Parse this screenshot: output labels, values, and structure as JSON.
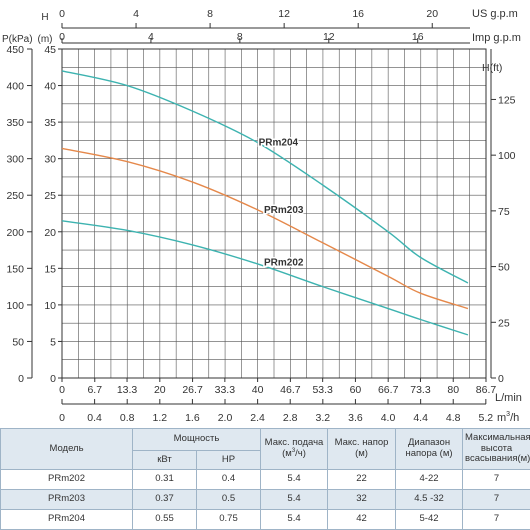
{
  "chart_data": {
    "type": "line",
    "title": "",
    "x_axes": {
      "us_gpm": {
        "label": "US g.p.m",
        "ticks": [
          "0",
          "4",
          "8",
          "12",
          "16",
          "20"
        ],
        "values": [
          0,
          4,
          8,
          12,
          16,
          20
        ]
      },
      "imp_gpm": {
        "label": "Imp g.p.m",
        "ticks": [
          "0",
          "4",
          "8",
          "12",
          "16"
        ],
        "values": [
          0,
          4,
          8,
          12,
          16
        ]
      },
      "l_min": {
        "label": "L/min",
        "ticks": [
          "0",
          "6.7",
          "13.3",
          "20",
          "26.7",
          "33.3",
          "40",
          "46.7",
          "53.3",
          "60",
          "66.7",
          "73.3",
          "80",
          "86.7"
        ],
        "values": [
          0,
          6.7,
          13.3,
          20,
          26.7,
          33.3,
          40,
          46.7,
          53.3,
          60,
          66.7,
          73.3,
          80,
          86.7
        ]
      },
      "m3h": {
        "label": "m",
        "unit_super": "3",
        "unit_tail": "/h",
        "ticks": [
          "0",
          "0.4",
          "0.8",
          "1.2",
          "1.6",
          "2.0",
          "2.4",
          "2.8",
          "3.2",
          "3.6",
          "4.0",
          "4.4",
          "4.8",
          "5.2"
        ],
        "values": [
          0,
          0.4,
          0.8,
          1.2,
          1.6,
          2.0,
          2.4,
          2.8,
          3.2,
          3.6,
          4.0,
          4.4,
          4.8,
          5.2
        ]
      }
    },
    "y_axes": {
      "pressure": {
        "label": "P(kPa)",
        "ticks": [
          "0",
          "50",
          "100",
          "150",
          "200",
          "250",
          "300",
          "350",
          "400",
          "450"
        ]
      },
      "head_m": {
        "label_top": "H",
        "label": "(m)",
        "ticks": [
          "0",
          "5",
          "10",
          "15",
          "20",
          "25",
          "30",
          "35",
          "40",
          "45"
        ],
        "ylim": [
          0,
          45
        ]
      },
      "head_ft": {
        "label": "H(ft)",
        "ticks": [
          "0",
          "25",
          "50",
          "75",
          "100",
          "125"
        ],
        "values": [
          0,
          25,
          50,
          75,
          100,
          125
        ]
      }
    },
    "xlim": [
      0,
      86.7
    ],
    "grid": true,
    "series": [
      {
        "name": "PRm204",
        "color": "#3db3b0",
        "label_x": 40.2,
        "label_y": 31.8,
        "points": [
          [
            0,
            42
          ],
          [
            13.3,
            40
          ],
          [
            26.7,
            36.5
          ],
          [
            40,
            32.2
          ],
          [
            53.3,
            26.4
          ],
          [
            66.7,
            20
          ],
          [
            73.3,
            16.5
          ],
          [
            83,
            13
          ]
        ]
      },
      {
        "name": "PRm203",
        "color": "#e5884a",
        "label_x": 41.3,
        "label_y": 22.6,
        "points": [
          [
            0,
            31.4
          ],
          [
            13.3,
            29.6
          ],
          [
            26.7,
            26.8
          ],
          [
            40,
            23
          ],
          [
            53.3,
            18.5
          ],
          [
            66.7,
            13.9
          ],
          [
            73.3,
            11.6
          ],
          [
            83,
            9.5
          ]
        ]
      },
      {
        "name": "PRm202",
        "color": "#3db3b0",
        "label_x": 41.3,
        "label_y": 15.4,
        "points": [
          [
            0,
            21.5
          ],
          [
            13.3,
            20.2
          ],
          [
            26.7,
            18.2
          ],
          [
            40,
            15.6
          ],
          [
            53.3,
            12.5
          ],
          [
            66.7,
            9.5
          ],
          [
            73.3,
            8
          ],
          [
            83,
            5.9
          ]
        ]
      }
    ]
  },
  "table": {
    "headers": {
      "model": "Модель",
      "power": "Мощность",
      "kw": "кВт",
      "hp": "HP",
      "flow_pre": "Макс. подача (м",
      "flow_sup": "3",
      "flow_post": "/ч)",
      "head": "Макс. напор (м)",
      "range": "Диапазон напора (м)",
      "suction": "Максимальная высота всасывания(м)"
    },
    "rows": [
      {
        "model": "PRm202",
        "kw": "0.31",
        "hp": "0.4",
        "flow": "5.4",
        "head": "22",
        "range": "4-22",
        "suction": "7"
      },
      {
        "model": "PRm203",
        "kw": "0.37",
        "hp": "0.5",
        "flow": "5.4",
        "head": "32",
        "range": "4.5 -32",
        "suction": "7"
      },
      {
        "model": "PRm204",
        "kw": "0.55",
        "hp": "0.75",
        "flow": "5.4",
        "head": "42",
        "range": "5-42",
        "suction": "7"
      }
    ]
  }
}
